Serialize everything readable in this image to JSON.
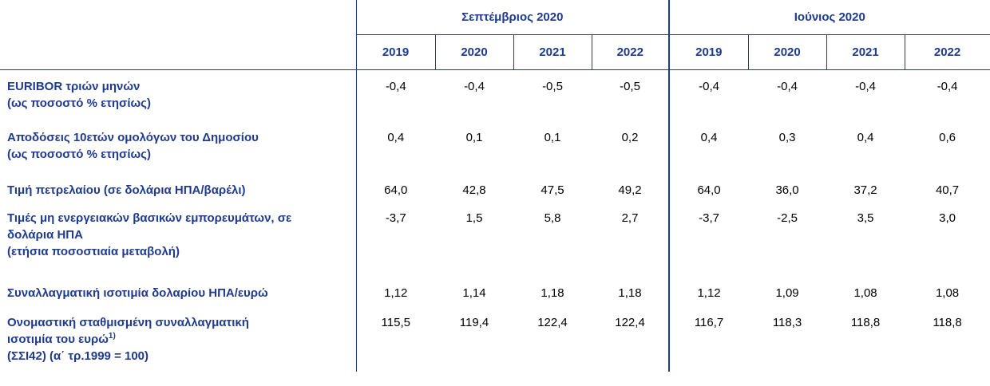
{
  "groups": {
    "sep": "Σεπτέμβριος 2020",
    "jun": "Ιούνιος 2020"
  },
  "years": [
    "2019",
    "2020",
    "2021",
    "2022"
  ],
  "rows": [
    {
      "label_line1": "EURIBOR τριών μηνών",
      "label_line2": "(ως ποσοστό % ετησίως)",
      "sep": [
        "-0,4",
        "-0,4",
        "-0,5",
        "-0,5"
      ],
      "jun": [
        "-0,4",
        "-0,4",
        "-0,4",
        "-0,4"
      ]
    },
    {
      "label_line1": "Αποδόσεις 10ετών ομολόγων του Δημοσίου",
      "label_line2": "(ως ποσοστό % ετησίως)",
      "sep": [
        "0,4",
        "0,1",
        "0,1",
        "0,2"
      ],
      "jun": [
        "0,4",
        "0,3",
        "0,4",
        "0,6"
      ]
    },
    {
      "label_line1": "Τιμή πετρελαίου (σε δολάρια ΗΠΑ/βαρέλι)",
      "sep": [
        "64,0",
        "42,8",
        "47,5",
        "49,2"
      ],
      "jun": [
        "64,0",
        "36,0",
        "37,2",
        "40,7"
      ]
    },
    {
      "label_line1": "Τιμές μη ενεργειακών βασικών εμπορευμάτων, σε",
      "label_line2": "δολάρια ΗΠΑ",
      "label_line3": "(ετήσια ποσοστιαία μεταβολή)",
      "sep": [
        "-3,7",
        "1,5",
        "5,8",
        "2,7"
      ],
      "jun": [
        "-3,7",
        "-2,5",
        "3,5",
        "3,0"
      ]
    },
    {
      "label_line1": "Συναλλαγματική ισοτιμία δολαρίου ΗΠΑ/ευρώ",
      "sep": [
        "1,12",
        "1,14",
        "1,18",
        "1,18"
      ],
      "jun": [
        "1,12",
        "1,09",
        "1,08",
        "1,08"
      ]
    },
    {
      "label_line1": "Ονομαστική σταθμισμένη συναλλαγματική",
      "label_line2": "ισοτιμία του ευρώ",
      "label_sup": "1)",
      "label_line3": "(ΣΣΙ42) (α΄ τρ.1999 = 100)",
      "sep": [
        "115,5",
        "119,4",
        "122,4",
        "122,4"
      ],
      "jun": [
        "116,7",
        "118,3",
        "118,8",
        "118,8"
      ]
    }
  ]
}
